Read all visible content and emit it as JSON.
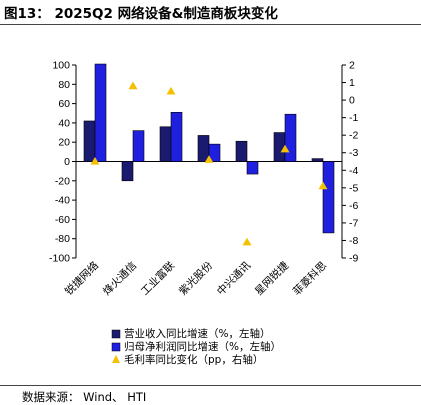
{
  "header": {
    "title": "图13： 2025Q2 网络设备&制造商板块变化"
  },
  "footer": {
    "source": "数据来源： Wind、 HTI"
  },
  "chart_data": {
    "type": "bar",
    "categories": [
      "锐捷网络",
      "烽火通信",
      "工业富联",
      "紫光股份",
      "中兴通讯",
      "星网锐捷",
      "菲菱科思"
    ],
    "series": [
      {
        "name": "营业收入同比增速（%，左轴）",
        "axis": "left",
        "kind": "bar",
        "color": "#1a1a6e",
        "values": [
          42,
          -20,
          36,
          27,
          21,
          30,
          3
        ]
      },
      {
        "name": "归母净利润同比增速（%，左轴）",
        "axis": "left",
        "kind": "bar",
        "color": "#1f1fe0",
        "values": [
          101,
          32,
          51,
          18,
          -13,
          49,
          -74
        ]
      },
      {
        "name": "毛利率同比变化（pp，右轴）",
        "axis": "right",
        "kind": "marker",
        "color": "#f5c000",
        "values": [
          -3.5,
          0.8,
          0.5,
          -3.4,
          -8.1,
          -2.8,
          -4.9
        ]
      }
    ],
    "ylim_left": [
      -100,
      100
    ],
    "yticks_left": [
      100,
      80,
      60,
      40,
      20,
      0,
      -20,
      -40,
      -60,
      -80,
      -100
    ],
    "ylim_right": [
      -9,
      2
    ],
    "yticks_right": [
      2,
      1,
      0,
      -1,
      -2,
      -3,
      -4,
      -5,
      -6,
      -7,
      -8,
      -9
    ],
    "grid": false,
    "legend_position": "bottom"
  }
}
